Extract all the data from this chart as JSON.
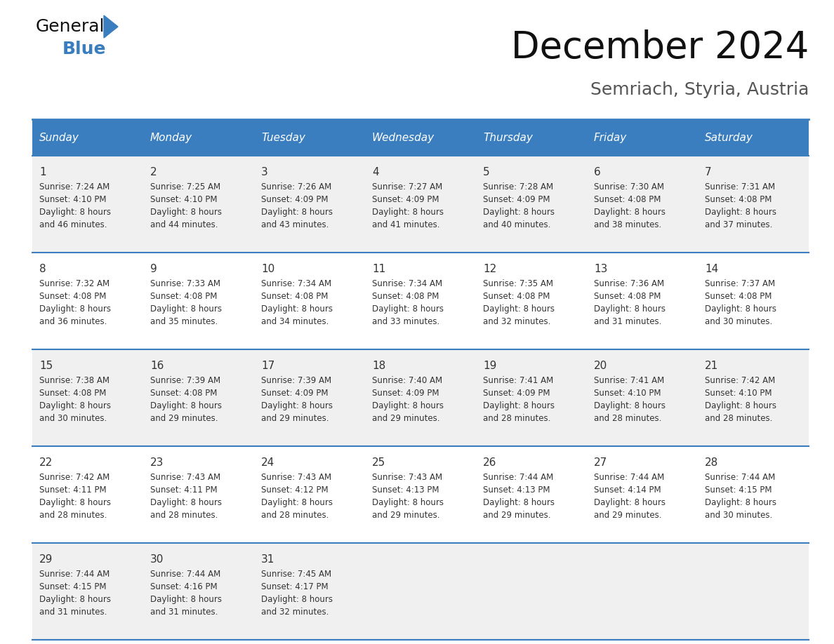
{
  "title": "December 2024",
  "subtitle": "Semriach, Styria, Austria",
  "header_color": "#3a7ebf",
  "header_text_color": "#ffffff",
  "day_names": [
    "Sunday",
    "Monday",
    "Tuesday",
    "Wednesday",
    "Thursday",
    "Friday",
    "Saturday"
  ],
  "row_bg_colors": [
    "#f0f0f0",
    "#ffffff",
    "#f0f0f0",
    "#ffffff",
    "#f0f0f0"
  ],
  "border_color": "#3a7ebf",
  "text_color": "#333333",
  "date_fontsize": 11,
  "info_fontsize": 8.5,
  "header_fontsize": 11,
  "title_fontsize": 38,
  "subtitle_fontsize": 18,
  "days": [
    {
      "date": 1,
      "col": 0,
      "row": 0,
      "sunrise": "7:24 AM",
      "sunset": "4:10 PM",
      "daylight_h": "8 hours",
      "daylight_m": "46 minutes"
    },
    {
      "date": 2,
      "col": 1,
      "row": 0,
      "sunrise": "7:25 AM",
      "sunset": "4:10 PM",
      "daylight_h": "8 hours",
      "daylight_m": "44 minutes"
    },
    {
      "date": 3,
      "col": 2,
      "row": 0,
      "sunrise": "7:26 AM",
      "sunset": "4:09 PM",
      "daylight_h": "8 hours",
      "daylight_m": "43 minutes"
    },
    {
      "date": 4,
      "col": 3,
      "row": 0,
      "sunrise": "7:27 AM",
      "sunset": "4:09 PM",
      "daylight_h": "8 hours",
      "daylight_m": "41 minutes"
    },
    {
      "date": 5,
      "col": 4,
      "row": 0,
      "sunrise": "7:28 AM",
      "sunset": "4:09 PM",
      "daylight_h": "8 hours",
      "daylight_m": "40 minutes"
    },
    {
      "date": 6,
      "col": 5,
      "row": 0,
      "sunrise": "7:30 AM",
      "sunset": "4:08 PM",
      "daylight_h": "8 hours",
      "daylight_m": "38 minutes"
    },
    {
      "date": 7,
      "col": 6,
      "row": 0,
      "sunrise": "7:31 AM",
      "sunset": "4:08 PM",
      "daylight_h": "8 hours",
      "daylight_m": "37 minutes"
    },
    {
      "date": 8,
      "col": 0,
      "row": 1,
      "sunrise": "7:32 AM",
      "sunset": "4:08 PM",
      "daylight_h": "8 hours",
      "daylight_m": "36 minutes"
    },
    {
      "date": 9,
      "col": 1,
      "row": 1,
      "sunrise": "7:33 AM",
      "sunset": "4:08 PM",
      "daylight_h": "8 hours",
      "daylight_m": "35 minutes"
    },
    {
      "date": 10,
      "col": 2,
      "row": 1,
      "sunrise": "7:34 AM",
      "sunset": "4:08 PM",
      "daylight_h": "8 hours",
      "daylight_m": "34 minutes"
    },
    {
      "date": 11,
      "col": 3,
      "row": 1,
      "sunrise": "7:34 AM",
      "sunset": "4:08 PM",
      "daylight_h": "8 hours",
      "daylight_m": "33 minutes"
    },
    {
      "date": 12,
      "col": 4,
      "row": 1,
      "sunrise": "7:35 AM",
      "sunset": "4:08 PM",
      "daylight_h": "8 hours",
      "daylight_m": "32 minutes"
    },
    {
      "date": 13,
      "col": 5,
      "row": 1,
      "sunrise": "7:36 AM",
      "sunset": "4:08 PM",
      "daylight_h": "8 hours",
      "daylight_m": "31 minutes"
    },
    {
      "date": 14,
      "col": 6,
      "row": 1,
      "sunrise": "7:37 AM",
      "sunset": "4:08 PM",
      "daylight_h": "8 hours",
      "daylight_m": "30 minutes"
    },
    {
      "date": 15,
      "col": 0,
      "row": 2,
      "sunrise": "7:38 AM",
      "sunset": "4:08 PM",
      "daylight_h": "8 hours",
      "daylight_m": "30 minutes"
    },
    {
      "date": 16,
      "col": 1,
      "row": 2,
      "sunrise": "7:39 AM",
      "sunset": "4:08 PM",
      "daylight_h": "8 hours",
      "daylight_m": "29 minutes"
    },
    {
      "date": 17,
      "col": 2,
      "row": 2,
      "sunrise": "7:39 AM",
      "sunset": "4:09 PM",
      "daylight_h": "8 hours",
      "daylight_m": "29 minutes"
    },
    {
      "date": 18,
      "col": 3,
      "row": 2,
      "sunrise": "7:40 AM",
      "sunset": "4:09 PM",
      "daylight_h": "8 hours",
      "daylight_m": "29 minutes"
    },
    {
      "date": 19,
      "col": 4,
      "row": 2,
      "sunrise": "7:41 AM",
      "sunset": "4:09 PM",
      "daylight_h": "8 hours",
      "daylight_m": "28 minutes"
    },
    {
      "date": 20,
      "col": 5,
      "row": 2,
      "sunrise": "7:41 AM",
      "sunset": "4:10 PM",
      "daylight_h": "8 hours",
      "daylight_m": "28 minutes"
    },
    {
      "date": 21,
      "col": 6,
      "row": 2,
      "sunrise": "7:42 AM",
      "sunset": "4:10 PM",
      "daylight_h": "8 hours",
      "daylight_m": "28 minutes"
    },
    {
      "date": 22,
      "col": 0,
      "row": 3,
      "sunrise": "7:42 AM",
      "sunset": "4:11 PM",
      "daylight_h": "8 hours",
      "daylight_m": "28 minutes"
    },
    {
      "date": 23,
      "col": 1,
      "row": 3,
      "sunrise": "7:43 AM",
      "sunset": "4:11 PM",
      "daylight_h": "8 hours",
      "daylight_m": "28 minutes"
    },
    {
      "date": 24,
      "col": 2,
      "row": 3,
      "sunrise": "7:43 AM",
      "sunset": "4:12 PM",
      "daylight_h": "8 hours",
      "daylight_m": "28 minutes"
    },
    {
      "date": 25,
      "col": 3,
      "row": 3,
      "sunrise": "7:43 AM",
      "sunset": "4:13 PM",
      "daylight_h": "8 hours",
      "daylight_m": "29 minutes"
    },
    {
      "date": 26,
      "col": 4,
      "row": 3,
      "sunrise": "7:44 AM",
      "sunset": "4:13 PM",
      "daylight_h": "8 hours",
      "daylight_m": "29 minutes"
    },
    {
      "date": 27,
      "col": 5,
      "row": 3,
      "sunrise": "7:44 AM",
      "sunset": "4:14 PM",
      "daylight_h": "8 hours",
      "daylight_m": "29 minutes"
    },
    {
      "date": 28,
      "col": 6,
      "row": 3,
      "sunrise": "7:44 AM",
      "sunset": "4:15 PM",
      "daylight_h": "8 hours",
      "daylight_m": "30 minutes"
    },
    {
      "date": 29,
      "col": 0,
      "row": 4,
      "sunrise": "7:44 AM",
      "sunset": "4:15 PM",
      "daylight_h": "8 hours",
      "daylight_m": "31 minutes"
    },
    {
      "date": 30,
      "col": 1,
      "row": 4,
      "sunrise": "7:44 AM",
      "sunset": "4:16 PM",
      "daylight_h": "8 hours",
      "daylight_m": "31 minutes"
    },
    {
      "date": 31,
      "col": 2,
      "row": 4,
      "sunrise": "7:45 AM",
      "sunset": "4:17 PM",
      "daylight_h": "8 hours",
      "daylight_m": "32 minutes"
    }
  ]
}
